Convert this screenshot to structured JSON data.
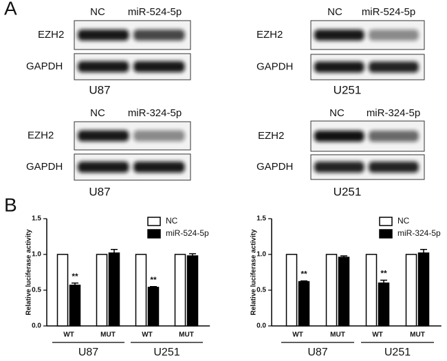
{
  "panel_labels": [
    "A",
    "B"
  ],
  "blots": [
    {
      "lanes": [
        "NC",
        "miR-524-5p"
      ],
      "rows": [
        "EZH2",
        "GAPDH"
      ],
      "cell_line": "U87"
    },
    {
      "lanes": [
        "NC",
        "miR-524-5p"
      ],
      "rows": [
        "EZH2",
        "GAPDH"
      ],
      "cell_line": "U251"
    },
    {
      "lanes": [
        "NC",
        "miR-324-5p"
      ],
      "rows": [
        "EZH2",
        "GAPDH"
      ],
      "cell_line": "U87"
    },
    {
      "lanes": [
        "NC",
        "miR-324-5p"
      ],
      "rows": [
        "EZH2",
        "GAPDH"
      ],
      "cell_line": "U251"
    }
  ],
  "chart_data": [
    {
      "type": "bar",
      "y_label": "Relative luciferase activity",
      "categories": [
        "WT",
        "MUT",
        "WT",
        "MUT"
      ],
      "groups": [
        "U87",
        "U251"
      ],
      "series": [
        {
          "name": "NC",
          "color": "#ffffff",
          "values": [
            1,
            1,
            1,
            1
          ]
        },
        {
          "name": "miR-524-5p",
          "color": "#000000",
          "values": [
            0.57,
            1.02,
            0.54,
            0.98
          ],
          "errors": [
            0.03,
            0.05,
            0.01,
            0.03
          ]
        }
      ],
      "annotations": [
        "**",
        null,
        "**",
        null
      ],
      "ylim": [
        0,
        1.5
      ],
      "yticks": [
        {
          "value": 0,
          "label": "0.0"
        },
        {
          "value": 0.5,
          "label": "0.5"
        },
        {
          "value": 1,
          "label": "1.0"
        },
        {
          "value": 1.5,
          "label": "1.5"
        }
      ]
    },
    {
      "type": "bar",
      "y_label": "Relative luciferase activity",
      "categories": [
        "WT",
        "MUT",
        "WT",
        "MUT"
      ],
      "groups": [
        "U87",
        "U251"
      ],
      "series": [
        {
          "name": "NC",
          "color": "#ffffff",
          "values": [
            1,
            1,
            1,
            1
          ]
        },
        {
          "name": "miR-324-5p",
          "color": "#000000",
          "values": [
            0.62,
            0.96,
            0.6,
            1.02
          ],
          "errors": [
            0.01,
            0.02,
            0.04,
            0.05
          ]
        }
      ],
      "annotations": [
        "**",
        null,
        "**",
        null
      ],
      "ylim": [
        0,
        1.5
      ],
      "yticks": [
        {
          "value": 0,
          "label": "0.0"
        },
        {
          "value": 0.5,
          "label": "0.5"
        },
        {
          "value": 1,
          "label": "1.0"
        },
        {
          "value": 1.5,
          "label": "1.5"
        }
      ]
    }
  ]
}
